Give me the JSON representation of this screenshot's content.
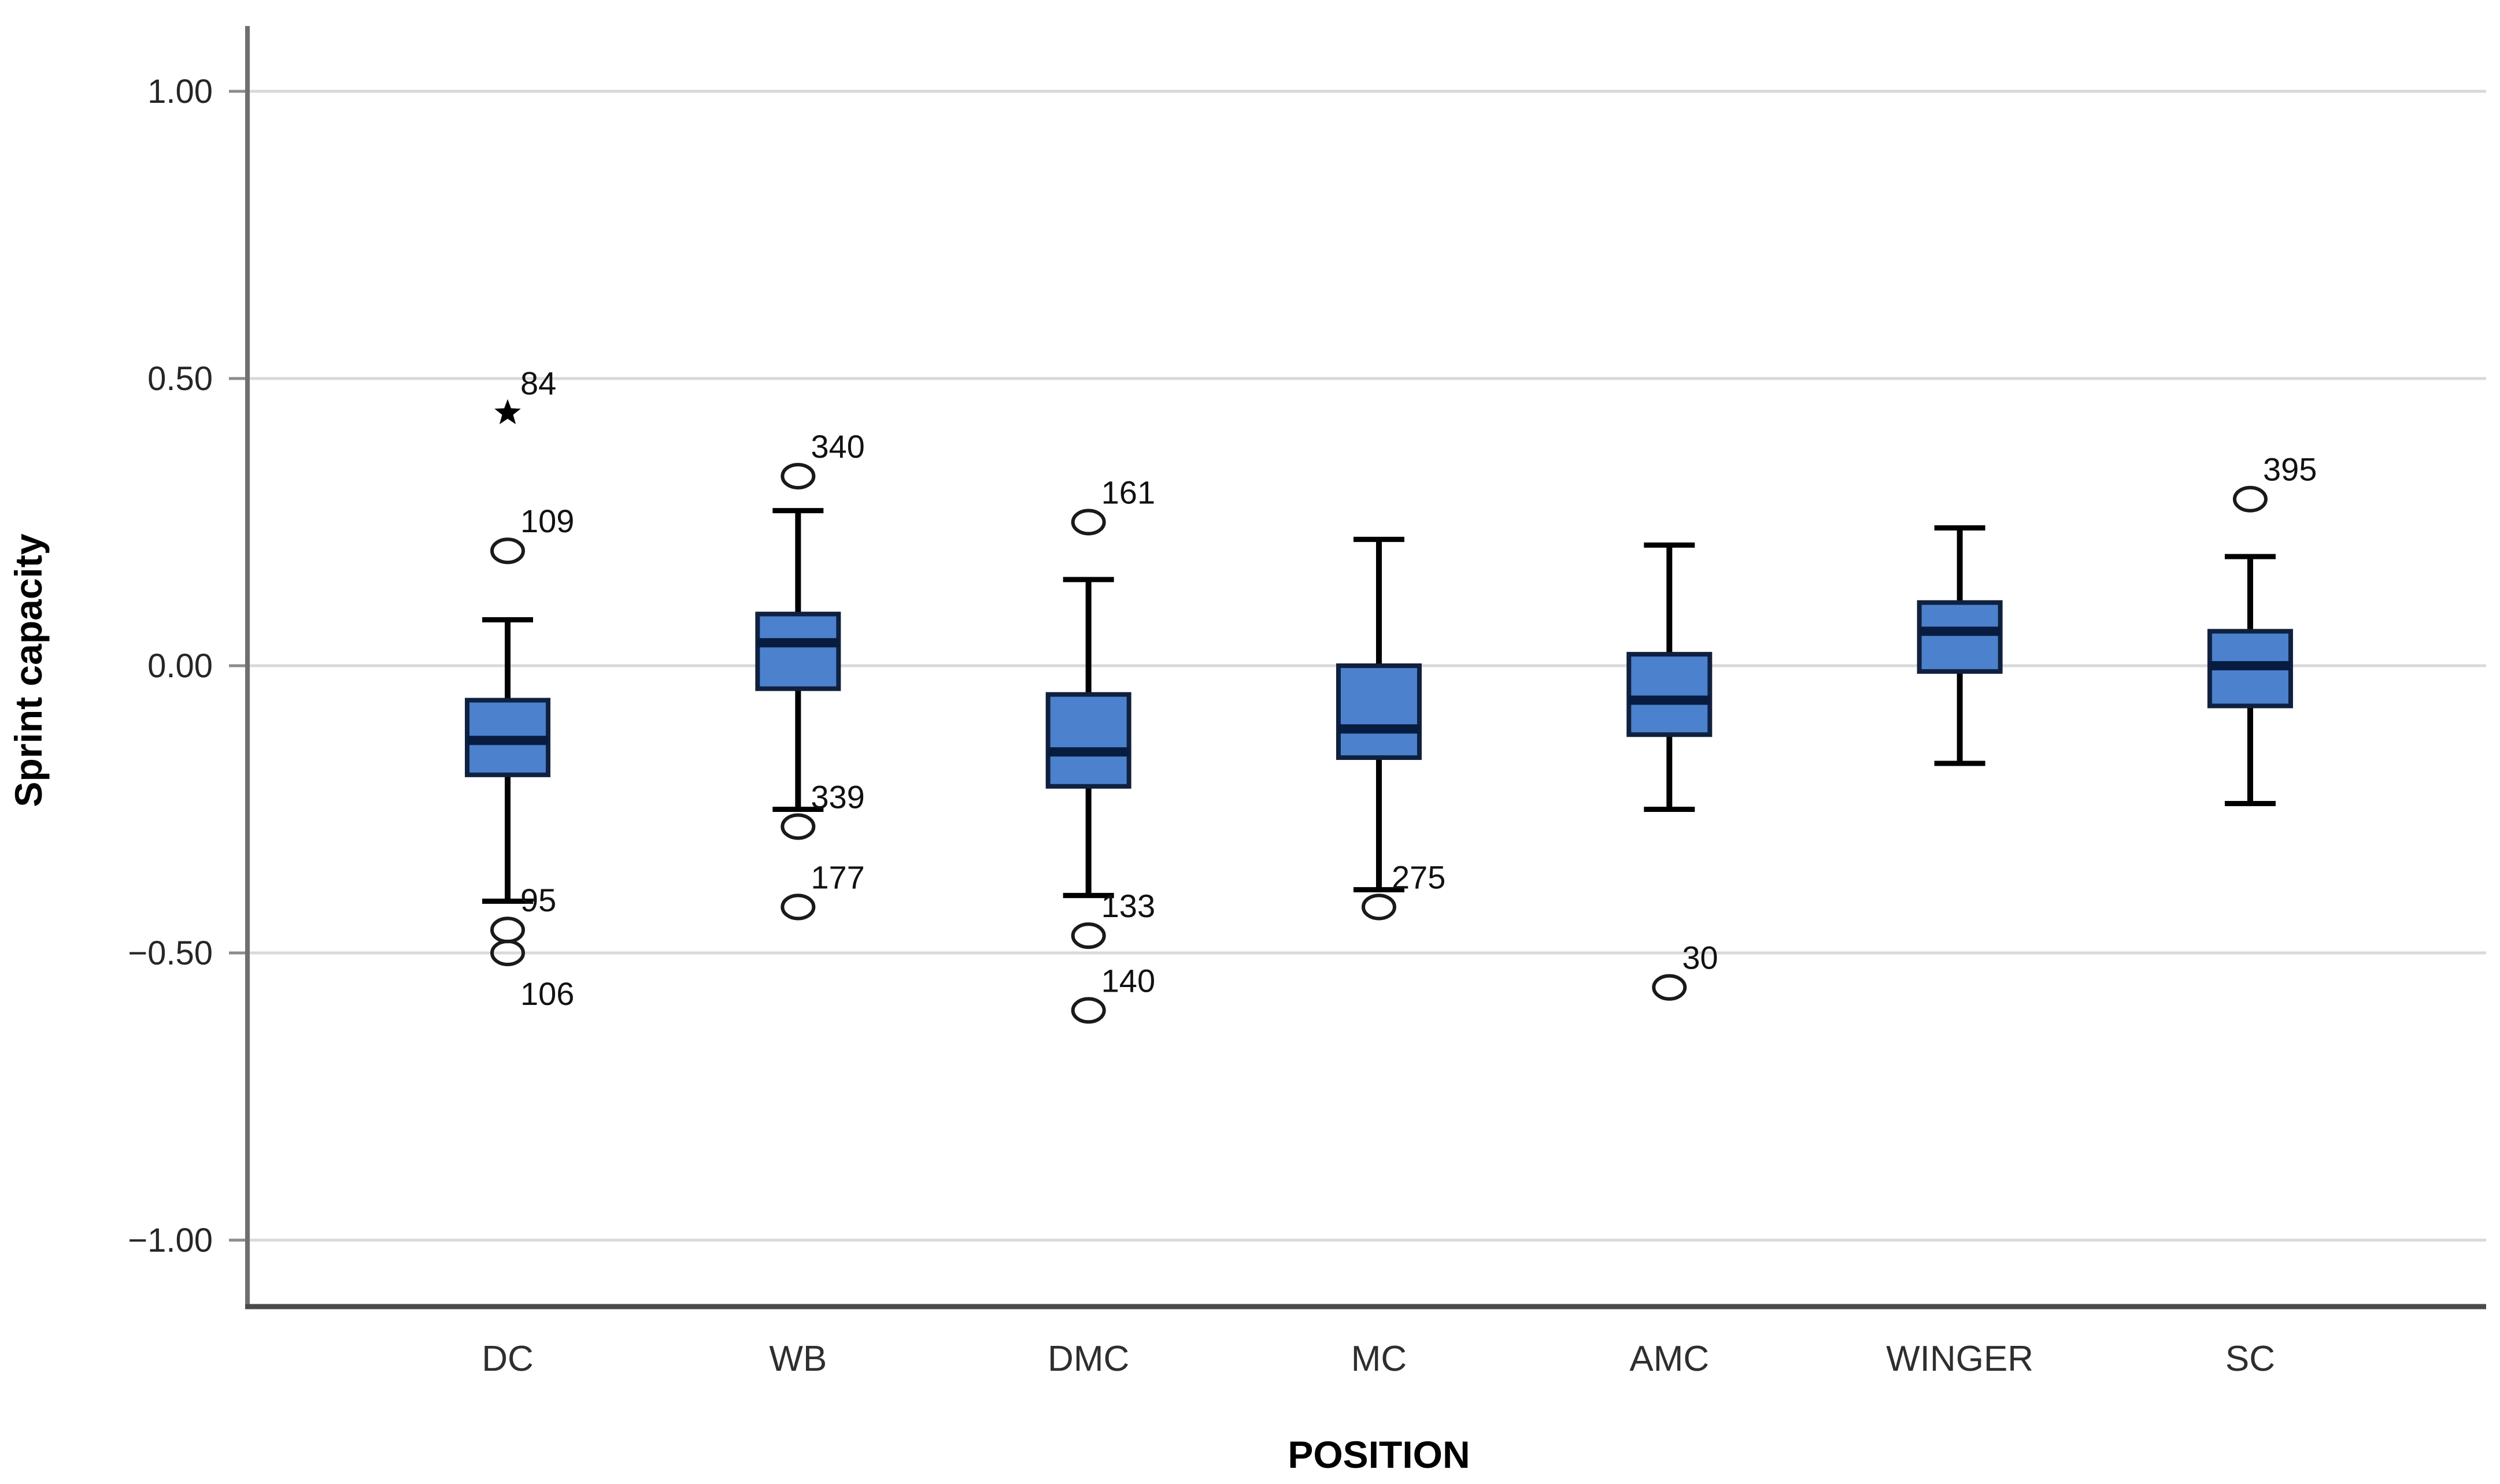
{
  "chart_data": {
    "type": "box",
    "title": "",
    "xlabel": "POSITION",
    "ylabel": "Sprint capacity",
    "ylim": [
      -1.12,
      1.11
    ],
    "grid": "horizontal-gridlines",
    "legend": "none",
    "yticks": [
      {
        "value": 1.0,
        "label": "1.00"
      },
      {
        "value": 0.5,
        "label": "0.50"
      },
      {
        "value": 0.0,
        "label": "0.00"
      },
      {
        "value": -0.5,
        "label": "−0.50"
      },
      {
        "value": -1.0,
        "label": "−1.00"
      }
    ],
    "categories": [
      "DC",
      "WB",
      "DMC",
      "MC",
      "AMC",
      "WINGER",
      "SC"
    ],
    "series": [
      {
        "category": "DC",
        "whisker_low": -0.41,
        "q1": -0.19,
        "median": -0.13,
        "q3": -0.06,
        "whisker_high": 0.08,
        "outliers": [
          {
            "id": "84",
            "value": 0.44,
            "marker": "star",
            "label_side": "above-right"
          },
          {
            "id": "109",
            "value": 0.2,
            "marker": "circle",
            "label_side": "above-right"
          },
          {
            "id": "95",
            "value": -0.46,
            "marker": "circle",
            "label_side": "above-right"
          },
          {
            "id": "106",
            "value": -0.5,
            "marker": "circle",
            "label_side": "below-right"
          }
        ]
      },
      {
        "category": "WB",
        "whisker_low": -0.25,
        "q1": -0.04,
        "median": 0.04,
        "q3": 0.09,
        "whisker_high": 0.27,
        "outliers": [
          {
            "id": "340",
            "value": 0.33,
            "marker": "circle",
            "label_side": "above-right"
          },
          {
            "id": "339",
            "value": -0.28,
            "marker": "circle",
            "label_side": "above-right"
          },
          {
            "id": "177",
            "value": -0.42,
            "marker": "circle",
            "label_side": "above-right"
          }
        ]
      },
      {
        "category": "DMC",
        "whisker_low": -0.4,
        "q1": -0.21,
        "median": -0.15,
        "q3": -0.05,
        "whisker_high": 0.15,
        "outliers": [
          {
            "id": "161",
            "value": 0.25,
            "marker": "circle",
            "label_side": "above-right"
          },
          {
            "id": "133",
            "value": -0.47,
            "marker": "circle",
            "label_side": "above-right"
          },
          {
            "id": "140",
            "value": -0.6,
            "marker": "circle",
            "label_side": "above-right"
          }
        ]
      },
      {
        "category": "MC",
        "whisker_low": -0.39,
        "q1": -0.16,
        "median": -0.11,
        "q3": 0.0,
        "whisker_high": 0.22,
        "outliers": [
          {
            "id": "275",
            "value": -0.42,
            "marker": "circle",
            "label_side": "above-right"
          }
        ]
      },
      {
        "category": "AMC",
        "whisker_low": -0.25,
        "q1": -0.12,
        "median": -0.06,
        "q3": 0.02,
        "whisker_high": 0.21,
        "outliers": [
          {
            "id": "30",
            "value": -0.56,
            "marker": "circle",
            "label_side": "above-right"
          }
        ]
      },
      {
        "category": "WINGER",
        "whisker_low": -0.17,
        "q1": -0.01,
        "median": 0.06,
        "q3": 0.11,
        "whisker_high": 0.24,
        "outliers": []
      },
      {
        "category": "SC",
        "whisker_low": -0.24,
        "q1": -0.07,
        "median": 0.0,
        "q3": 0.06,
        "whisker_high": 0.19,
        "outliers": [
          {
            "id": "395",
            "value": 0.29,
            "marker": "circle",
            "label_side": "above-right"
          }
        ]
      }
    ],
    "colors": {
      "box_fill": "#4b81cd",
      "box_border": "#10213f",
      "median_line": "#081c40",
      "whisker": "#000000",
      "outlier_stroke": "#1a1a1a",
      "star_fill": "#000000",
      "gridline": "#d9d9d9",
      "tick_mark": "#8c8c8c",
      "axis_line_left": "#6f6f6f",
      "axis_line_bottom": "#4a4a4a",
      "tick_text": "#262626",
      "category_text": "#2e2e2e",
      "outlier_text": "#111111",
      "title_text": "#000000",
      "background": "#ffffff"
    }
  }
}
